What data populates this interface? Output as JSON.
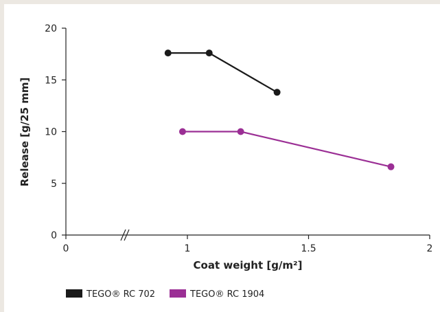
{
  "chart_data": {
    "type": "line",
    "title": "",
    "xlabel": "Coat weight [g/m²]",
    "ylabel": "Release [g/25 mm]",
    "xlim": [
      0,
      2
    ],
    "ylim": [
      0,
      20
    ],
    "x_ticks": [
      "0",
      "1",
      "1.5",
      "2"
    ],
    "x_tick_values": [
      0,
      1,
      1.5,
      2
    ],
    "y_ticks": [
      "0",
      "5",
      "10",
      "15",
      "20"
    ],
    "y_tick_values": [
      0,
      5,
      10,
      15,
      20
    ],
    "x_axis_break": true,
    "x_axis_break_after": 0,
    "x_axis_break_before": 1,
    "grid": false,
    "legend_position": "bottom-left",
    "series": [
      {
        "name": "TEGO® RC 702",
        "color": "#1a1a1a",
        "points": [
          [
            0.92,
            17.6
          ],
          [
            1.09,
            17.6
          ],
          [
            1.37,
            13.8
          ]
        ]
      },
      {
        "name": "TEGO® RC 1904",
        "color": "#9b2f95",
        "points": [
          [
            0.98,
            10.0
          ],
          [
            1.22,
            10.0
          ],
          [
            1.84,
            6.6
          ]
        ]
      }
    ]
  }
}
